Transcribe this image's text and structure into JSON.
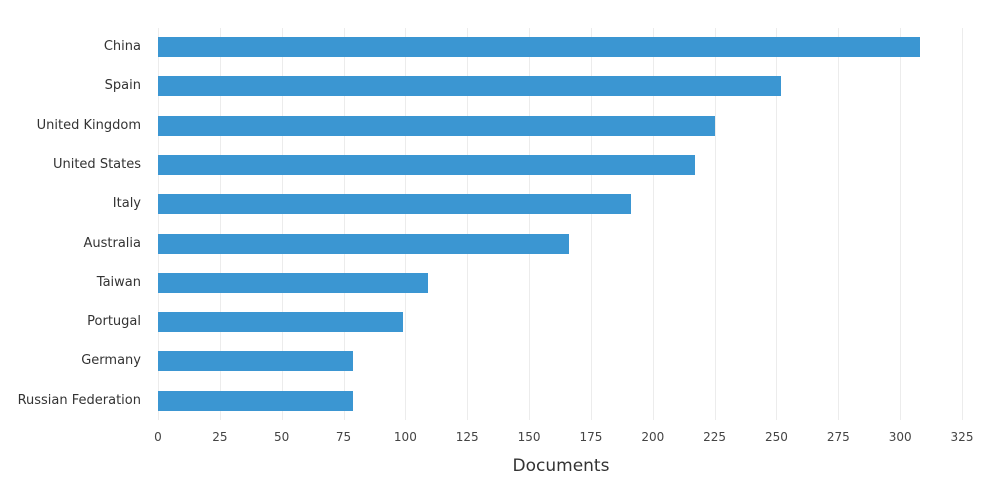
{
  "chart_data": {
    "type": "bar",
    "orientation": "horizontal",
    "title": "",
    "xlabel": "Documents",
    "ylabel": "",
    "categories": [
      "China",
      "Spain",
      "United Kingdom",
      "United States",
      "Italy",
      "Australia",
      "Taiwan",
      "Portugal",
      "Germany",
      "Russian Federation"
    ],
    "values": [
      308,
      252,
      225,
      217,
      191,
      166,
      109,
      99,
      79,
      79
    ],
    "xlim": [
      0,
      325
    ],
    "xticks": [
      0,
      25,
      50,
      75,
      100,
      125,
      150,
      175,
      200,
      225,
      250,
      275,
      300,
      325
    ],
    "grid": true,
    "legend": null,
    "bar_color": "#3b96d2"
  }
}
